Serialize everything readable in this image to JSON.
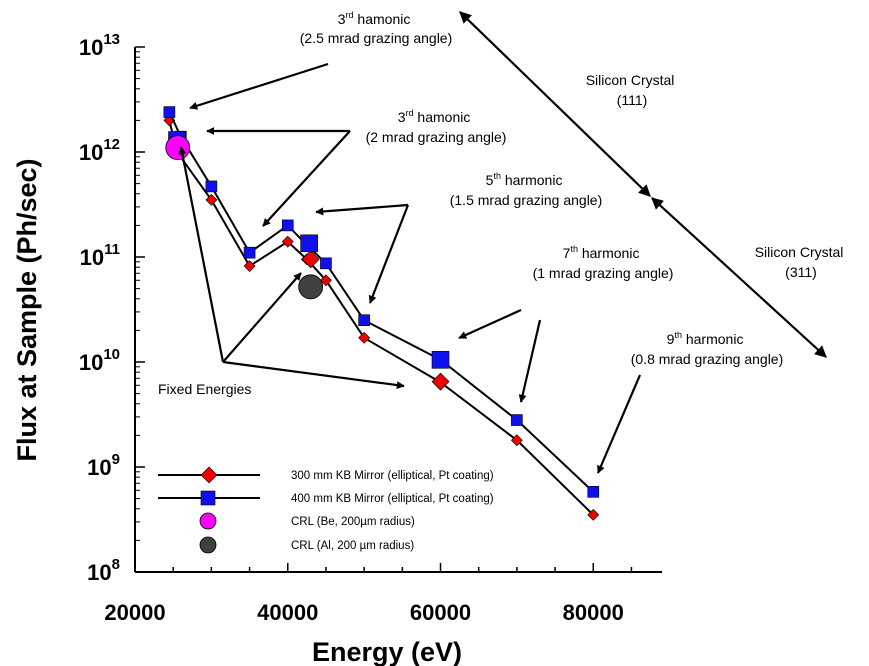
{
  "chart_data": {
    "type": "scatter",
    "title": "",
    "xlabel": "Energy (eV)",
    "ylabel": "Flux at Sample (Ph/sec)",
    "xlim": [
      20000,
      89000
    ],
    "ylim_log10": [
      8,
      13
    ],
    "yscale": "log",
    "grid": false,
    "legend_position": "bottom-left",
    "xticks": [
      "20000",
      "40000",
      "60000",
      "80000"
    ],
    "yticks": [
      {
        "base": "10",
        "exp": "8"
      },
      {
        "base": "10",
        "exp": "9"
      },
      {
        "base": "10",
        "exp": "10"
      },
      {
        "base": "10",
        "exp": "11"
      },
      {
        "base": "10",
        "exp": "12"
      },
      {
        "base": "10",
        "exp": "13"
      }
    ],
    "series": [
      {
        "name": "300 mm KB Mirror (elliptical, Pt coating)",
        "marker": "diamond",
        "color": "#ee0000",
        "line_points": [
          [
            24500,
            2000000000000.0
          ],
          [
            25500,
            1000000000000.0
          ],
          [
            30000,
            350000000000.0
          ],
          [
            35000,
            82000000000.0
          ],
          [
            40000,
            140000000000.0
          ],
          [
            42500,
            95000000000.0
          ],
          [
            45000,
            60000000000.0
          ],
          [
            50000,
            17000000000.0
          ],
          [
            60000,
            6400000000.0
          ],
          [
            70000,
            1800000000.0
          ],
          [
            80000,
            350000000.0
          ]
        ],
        "fixed_energy_points": [
          [
            26000,
            1050000000000.0
          ],
          [
            43000,
            95000000000.0
          ],
          [
            60000,
            6500000000.0
          ]
        ]
      },
      {
        "name": "400 mm KB Mirror (elliptical, Pt coating)",
        "marker": "square",
        "color": "#1010ee",
        "line_points": [
          [
            24500,
            2400000000000.0
          ],
          [
            26000,
            1400000000000.0
          ],
          [
            30000,
            470000000000.0
          ],
          [
            35000,
            110000000000.0
          ],
          [
            40000,
            200000000000.0
          ],
          [
            42500,
            130000000000.0
          ],
          [
            45000,
            87000000000.0
          ],
          [
            50000,
            25000000000.0
          ],
          [
            60000,
            10500000000.0
          ],
          [
            70000,
            2800000000.0
          ],
          [
            80000,
            580000000.0
          ]
        ],
        "fixed_energy_points": [
          [
            25500,
            1300000000000.0
          ],
          [
            42800,
            135000000000.0
          ],
          [
            60000,
            10500000000.0
          ]
        ]
      },
      {
        "name": "CRL (Be, 200µm radius)",
        "marker": "circle",
        "color": "#ff00ff",
        "points": [
          [
            25600,
            1100000000000.0
          ]
        ]
      },
      {
        "name": "CRL (Al, 200 µm radius)",
        "marker": "circle",
        "color": "#404040",
        "points": [
          [
            43000,
            52000000000.0
          ]
        ]
      }
    ],
    "annotations": [
      {
        "line1": "3",
        "sup": "rd",
        "line1b": " hamonic",
        "line2": "(2.5 mrad grazing angle)"
      },
      {
        "line1": "3",
        "sup": "rd",
        "line1b": " hamonic",
        "line2": "(2 mrad grazing angle)"
      },
      {
        "line1": "5",
        "sup": "th",
        "line1b": " harmonic",
        "line2": "(1.5 mrad grazing angle)"
      },
      {
        "line1": "7",
        "sup": "th",
        "line1b": " harmonic",
        "line2": "(1 mrad grazing angle)"
      },
      {
        "line1": "9",
        "sup": "th",
        "line1b": " harmonic",
        "line2": "(0.8 mrad grazing angle)"
      },
      {
        "line1": "Silicon Crystal",
        "sup": "",
        "line1b": "",
        "line2": "(111)"
      },
      {
        "line1": "Silicon Crystal",
        "sup": "",
        "line1b": "",
        "line2": "(311)"
      },
      {
        "line1": "Fixed Energies",
        "sup": "",
        "line1b": "",
        "line2": ""
      }
    ]
  }
}
